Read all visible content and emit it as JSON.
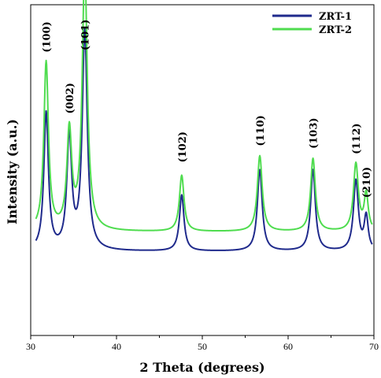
{
  "chart_data": {
    "type": "line",
    "xlabel": "2 Theta (degrees)",
    "ylabel": "Intensity (a.u.)",
    "xlim": [
      30,
      70
    ],
    "xticks": [
      "30",
      "40",
      "50",
      "60",
      "70"
    ],
    "grid": false,
    "legend_position": "top-right",
    "series": [
      {
        "name": "ZRT-1",
        "color": "#1f2a8c",
        "baseline": 12,
        "peaks": [
          [
            31.8,
            49,
            0.32
          ],
          [
            34.5,
            40,
            0.34
          ],
          [
            36.3,
            78,
            0.35
          ],
          [
            47.6,
            20,
            0.32
          ],
          [
            56.7,
            29,
            0.34
          ],
          [
            62.9,
            29,
            0.33
          ],
          [
            67.9,
            25,
            0.34
          ],
          [
            69.1,
            12,
            0.28
          ]
        ]
      },
      {
        "name": "ZRT-2",
        "color": "#4fdc4f",
        "baseline": 19,
        "peaks": [
          [
            31.8,
            60,
            0.32
          ],
          [
            34.5,
            35,
            0.34
          ],
          [
            36.3,
            94,
            0.35
          ],
          [
            47.6,
            20,
            0.32
          ],
          [
            56.7,
            27,
            0.34
          ],
          [
            62.9,
            26,
            0.33
          ],
          [
            67.9,
            24,
            0.34
          ],
          [
            69.1,
            13,
            0.28
          ]
        ]
      }
    ],
    "peak_annotations": [
      {
        "label": "(100)",
        "x": 31.8
      },
      {
        "label": "(002)",
        "x": 34.5
      },
      {
        "label": "(101)",
        "x": 36.3
      },
      {
        "label": "(102)",
        "x": 47.6
      },
      {
        "label": "(110)",
        "x": 56.7
      },
      {
        "label": "(103)",
        "x": 62.9
      },
      {
        "label": "(112)",
        "x": 67.9
      },
      {
        "label": "(210)",
        "x": 69.1
      }
    ]
  }
}
